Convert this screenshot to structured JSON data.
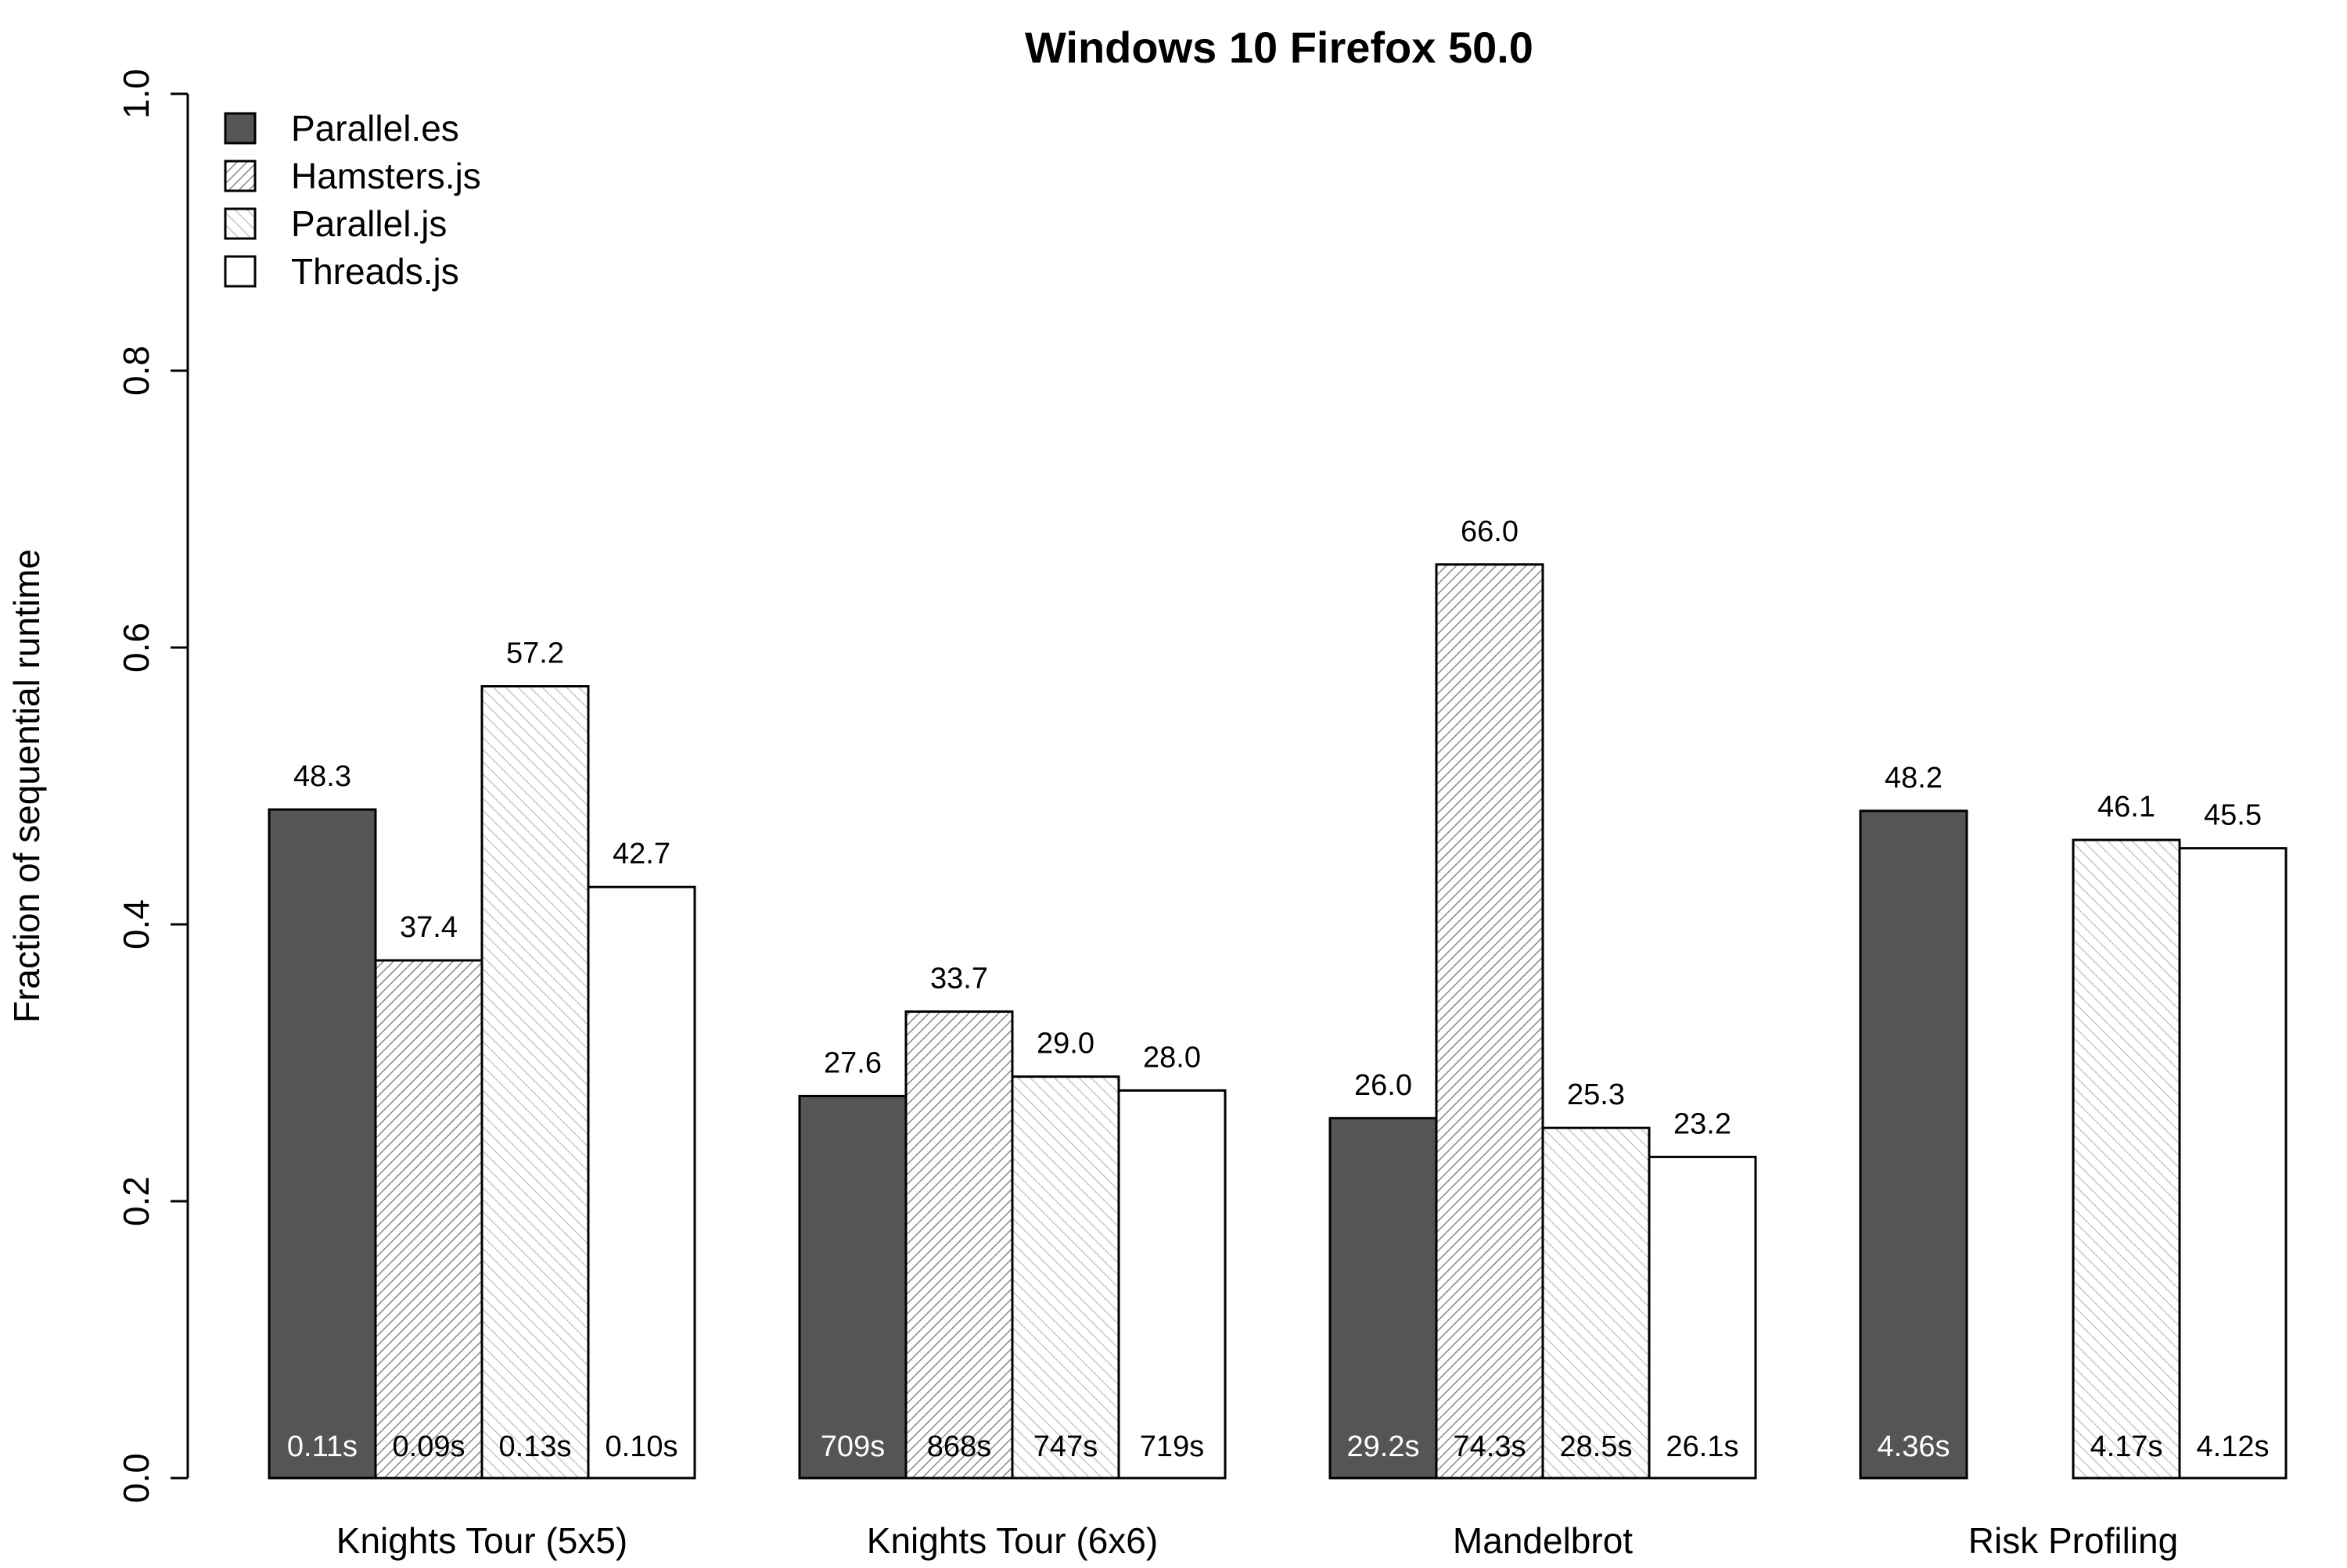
{
  "chart_data": {
    "type": "bar",
    "title": "Windows 10 Firefox 50.0",
    "xlabel": "",
    "ylabel": "Fraction of sequential runtime",
    "ylim": [
      0,
      1
    ],
    "yticks": [
      "0.0",
      "0.2",
      "0.4",
      "0.6",
      "0.8",
      "1.0"
    ],
    "legend_position": "top-left",
    "grid": false,
    "categories": [
      "Knights Tour (5x5)",
      "Knights Tour (6x6)",
      "Mandelbrot",
      "Risk Profiling"
    ],
    "series": [
      {
        "name": "Parallel.es",
        "fill": "#555555",
        "pattern": "solid",
        "values": [
          0.483,
          0.276,
          0.26,
          0.482
        ],
        "value_labels": [
          "48.3",
          "27.6",
          "26.0",
          "48.2"
        ],
        "time_labels": [
          "0.11s",
          "709s",
          "29.2s",
          "4.36s"
        ],
        "time_label_color": "#ffffff"
      },
      {
        "name": "Hamsters.js",
        "fill": "#ffffff",
        "pattern": "dense-hatch",
        "values": [
          0.374,
          0.337,
          0.66,
          null
        ],
        "value_labels": [
          "37.4",
          "33.7",
          "66.0",
          ""
        ],
        "time_labels": [
          "0.09s",
          "868s",
          "74.3s",
          ""
        ],
        "time_label_color": "#000000"
      },
      {
        "name": "Parallel.js",
        "fill": "#ffffff",
        "pattern": "light-hatch",
        "values": [
          0.572,
          0.29,
          0.253,
          0.461
        ],
        "value_labels": [
          "57.2",
          "29.0",
          "25.3",
          "46.1"
        ],
        "time_labels": [
          "0.13s",
          "747s",
          "28.5s",
          "4.17s"
        ],
        "time_label_color": "#000000"
      },
      {
        "name": "Threads.js",
        "fill": "#ffffff",
        "pattern": "none",
        "values": [
          0.427,
          0.28,
          0.232,
          0.455
        ],
        "value_labels": [
          "42.7",
          "28.0",
          "23.2",
          "45.5"
        ],
        "time_labels": [
          "0.10s",
          "719s",
          "26.1s",
          "4.12s"
        ],
        "time_label_color": "#000000"
      }
    ]
  }
}
